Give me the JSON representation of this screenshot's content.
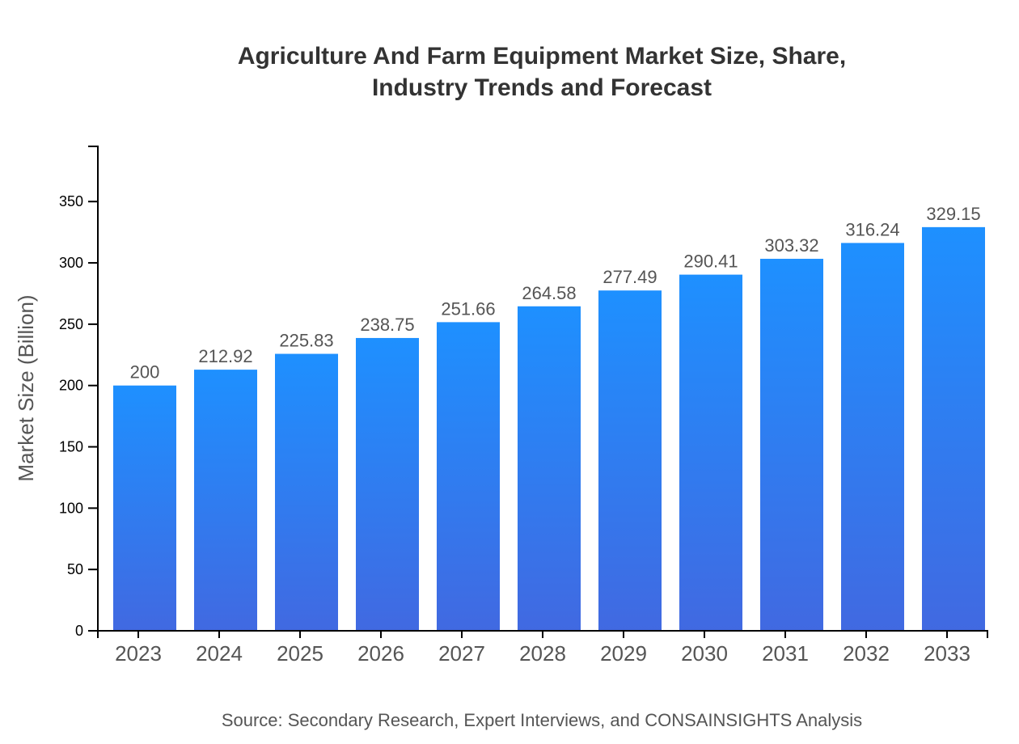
{
  "chart_data": {
    "type": "bar",
    "title_lines": [
      "Agriculture And Farm Equipment Market Size, Share,",
      "Industry Trends and Forecast"
    ],
    "categories": [
      "2023",
      "2024",
      "2025",
      "2026",
      "2027",
      "2028",
      "2029",
      "2030",
      "2031",
      "2032",
      "2033"
    ],
    "values": [
      200,
      212.92,
      225.83,
      238.75,
      251.66,
      264.58,
      277.49,
      290.41,
      303.32,
      316.24,
      329.15
    ],
    "value_labels": [
      "200",
      "212.92",
      "225.83",
      "238.75",
      "251.66",
      "264.58",
      "277.49",
      "290.41",
      "303.32",
      "316.24",
      "329.15"
    ],
    "xlabel": "",
    "ylabel": "Market Size (Billion)",
    "ylim": [
      0,
      395
    ],
    "yticks": [
      0,
      50,
      100,
      150,
      200,
      250,
      300,
      350
    ],
    "grid": false,
    "colors": {
      "bar_top": "#1e90ff",
      "bar_bottom": "#4169e1"
    }
  },
  "source": "Source: Secondary Research, Expert Interviews, and CONSAINSIGHTS Analysis"
}
